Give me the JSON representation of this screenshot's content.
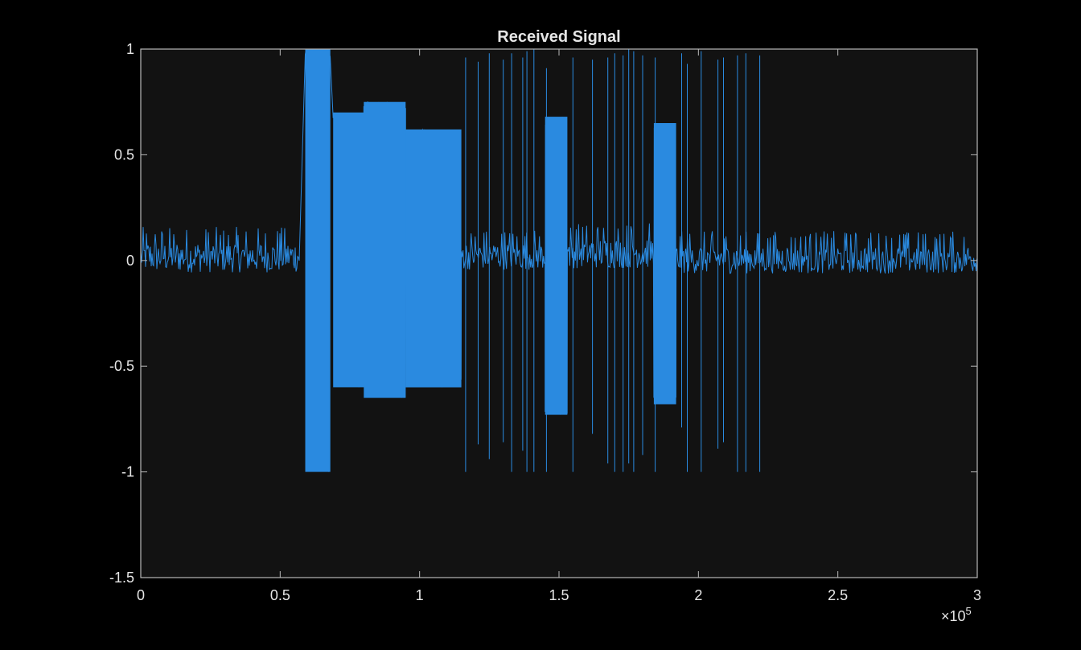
{
  "chart_data": {
    "type": "line",
    "title": "Received Signal",
    "xlabel": "",
    "ylabel": "",
    "xlim": [
      0,
      300000
    ],
    "ylim": [
      -1.5,
      1
    ],
    "x_ticks": [
      0,
      50000,
      100000,
      150000,
      200000,
      250000,
      300000
    ],
    "x_tick_labels": [
      "0",
      "0.5",
      "1",
      "1.5",
      "2",
      "2.5",
      "3"
    ],
    "x_exponent_label": "×10",
    "x_exponent_power": "5",
    "y_ticks": [
      1,
      0.5,
      0,
      -0.5,
      -1,
      -1.5
    ],
    "y_tick_labels": [
      "1",
      "0.5",
      "0",
      "-0.5",
      "-1",
      "-1.5"
    ],
    "grid": false,
    "colors": {
      "figure_bg": "#000000",
      "axes_bg": "#121212",
      "axes_edge": "#b8b8b8",
      "text": "#e6e6e6",
      "series": "#2a8ae0"
    },
    "series": [
      {
        "segments": [
          {
            "x_start": 0,
            "x_end": 57000,
            "low": -0.12,
            "high": 0.16
          },
          {
            "x_start": 59000,
            "x_end": 68000,
            "low": -1.0,
            "high": 1.0
          },
          {
            "x_start": 69000,
            "x_end": 80000,
            "low": -0.6,
            "high": 0.7
          },
          {
            "x_start": 80000,
            "x_end": 95000,
            "low": -0.65,
            "high": 0.75
          },
          {
            "x_start": 95000,
            "x_end": 115000,
            "low": -0.6,
            "high": 0.62
          },
          {
            "x_start": 115000,
            "x_end": 145000,
            "low": -0.1,
            "high": 0.15
          },
          {
            "x_start": 145000,
            "x_end": 153000,
            "low": -0.73,
            "high": 0.68
          },
          {
            "x_start": 153000,
            "x_end": 184000,
            "low": -0.1,
            "high": 0.18
          },
          {
            "x_start": 184000,
            "x_end": 192000,
            "low": -0.68,
            "high": 0.65
          },
          {
            "x_start": 192000,
            "x_end": 300000,
            "low": -0.12,
            "high": 0.14
          }
        ],
        "spikes": [
          {
            "x": 116500,
            "low": -1.0,
            "high": 0.96
          },
          {
            "x": 121000,
            "low": -0.87,
            "high": 0.94
          },
          {
            "x": 125000,
            "low": -0.94,
            "high": 0.98
          },
          {
            "x": 130000,
            "low": -0.86,
            "high": 0.95
          },
          {
            "x": 133000,
            "low": -1.0,
            "high": 0.98
          },
          {
            "x": 137000,
            "low": -0.9,
            "high": 0.96
          },
          {
            "x": 138500,
            "low": -1.0,
            "high": 0.99
          },
          {
            "x": 141000,
            "low": -1.0,
            "high": 1.0
          },
          {
            "x": 145500,
            "low": -1.0,
            "high": 0.91
          },
          {
            "x": 155000,
            "low": -1.0,
            "high": 0.96
          },
          {
            "x": 162000,
            "low": -0.82,
            "high": 0.95
          },
          {
            "x": 167500,
            "low": -0.96,
            "high": 0.96
          },
          {
            "x": 170000,
            "low": -1.0,
            "high": 0.98
          },
          {
            "x": 173000,
            "low": -1.0,
            "high": 0.97
          },
          {
            "x": 175000,
            "low": -0.96,
            "high": 1.0
          },
          {
            "x": 176800,
            "low": -1.0,
            "high": 0.99
          },
          {
            "x": 180000,
            "low": -0.92,
            "high": 0.97
          },
          {
            "x": 184500,
            "low": -1.0,
            "high": 0.96
          },
          {
            "x": 194000,
            "low": -0.79,
            "high": 0.98
          },
          {
            "x": 196000,
            "low": -1.0,
            "high": 0.93
          },
          {
            "x": 201000,
            "low": -1.0,
            "high": 0.99
          },
          {
            "x": 207000,
            "low": -0.89,
            "high": 0.95
          },
          {
            "x": 209000,
            "low": -0.86,
            "high": 0.96
          },
          {
            "x": 214000,
            "low": -1.0,
            "high": 0.97
          },
          {
            "x": 217000,
            "low": -1.0,
            "high": 0.98
          },
          {
            "x": 222000,
            "low": -1.0,
            "high": 0.97
          }
        ]
      }
    ]
  }
}
